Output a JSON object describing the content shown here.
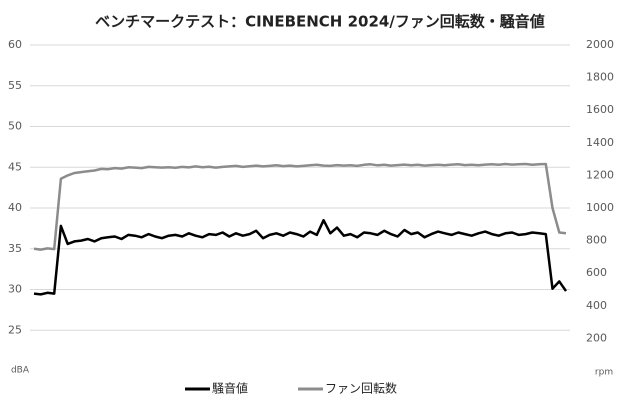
{
  "chart_data": {
    "type": "line",
    "title": "ベンチマークテスト：CINEBENCH 2024/ファン回転数・騒音値",
    "y_label": "dBA",
    "y2_label": "rpm",
    "ylim": [
      20,
      60
    ],
    "yticks": [
      25,
      30,
      35,
      40,
      45,
      50,
      55,
      60
    ],
    "y2lim": [
      0,
      2000
    ],
    "y2ticks": [
      200,
      400,
      600,
      800,
      1000,
      1200,
      1400,
      1600,
      1800,
      2000
    ],
    "grid": true,
    "legend": "bottom",
    "series": [
      {
        "name": "騒音値",
        "color": "#000000",
        "axis": "y",
        "values": [
          29.5,
          29.4,
          29.6,
          29.5,
          37.8,
          35.6,
          35.9,
          36.0,
          36.2,
          35.9,
          36.3,
          36.4,
          36.5,
          36.2,
          36.7,
          36.6,
          36.4,
          36.8,
          36.5,
          36.3,
          36.6,
          36.7,
          36.5,
          36.9,
          36.6,
          36.4,
          36.8,
          36.7,
          37.0,
          36.5,
          36.9,
          36.6,
          36.8,
          37.2,
          36.3,
          36.7,
          36.9,
          36.6,
          37.0,
          36.8,
          36.5,
          37.1,
          36.7,
          38.5,
          36.9,
          37.6,
          36.6,
          36.8,
          36.4,
          37.0,
          36.9,
          36.7,
          37.2,
          36.8,
          36.5,
          37.3,
          36.8,
          37.0,
          36.4,
          36.8,
          37.1,
          36.9,
          36.7,
          37.0,
          36.8,
          36.6,
          36.9,
          37.1,
          36.8,
          36.6,
          36.9,
          37.0,
          36.7,
          36.8,
          37.0,
          36.9,
          36.8,
          30.1,
          31.0,
          29.8
        ]
      },
      {
        "name": "ファン回転数",
        "color": "#8c8c8c",
        "axis": "y2",
        "values": [
          750,
          745,
          752,
          748,
          1180,
          1200,
          1215,
          1220,
          1225,
          1230,
          1240,
          1238,
          1245,
          1242,
          1250,
          1248,
          1245,
          1252,
          1250,
          1248,
          1250,
          1247,
          1252,
          1249,
          1255,
          1250,
          1253,
          1248,
          1252,
          1255,
          1258,
          1252,
          1256,
          1260,
          1255,
          1258,
          1262,
          1257,
          1260,
          1255,
          1258,
          1262,
          1265,
          1260,
          1258,
          1263,
          1260,
          1262,
          1258,
          1265,
          1268,
          1262,
          1265,
          1260,
          1263,
          1266,
          1262,
          1265,
          1260,
          1263,
          1265,
          1262,
          1266,
          1268,
          1263,
          1265,
          1262,
          1266,
          1268,
          1265,
          1270,
          1266,
          1268,
          1270,
          1265,
          1268,
          1270,
          1000,
          850,
          845
        ]
      }
    ]
  }
}
